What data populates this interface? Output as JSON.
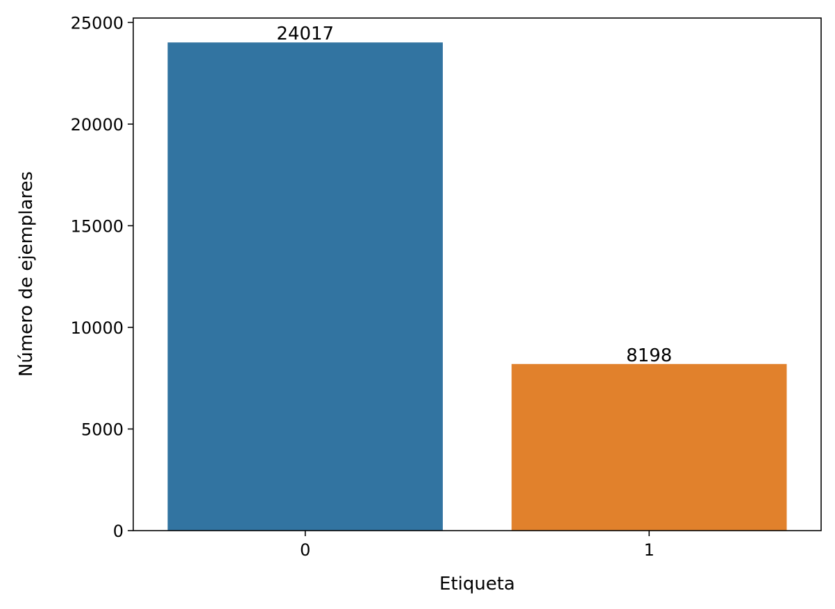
{
  "chart_data": {
    "type": "bar",
    "title": "",
    "xlabel": "Etiqueta",
    "ylabel": "Número de ejemplares",
    "categories": [
      "0",
      "1"
    ],
    "values": [
      24017,
      8198
    ],
    "value_labels": [
      "24017",
      "8198"
    ],
    "colors": [
      "#3274a1",
      "#e1812c"
    ],
    "ylim": [
      0,
      25218
    ],
    "yticks": [
      0,
      5000,
      10000,
      15000,
      20000,
      25000
    ],
    "ytick_labels": [
      "0",
      "5000",
      "10000",
      "15000",
      "20000",
      "25000"
    ],
    "grid": false,
    "legend": false
  }
}
